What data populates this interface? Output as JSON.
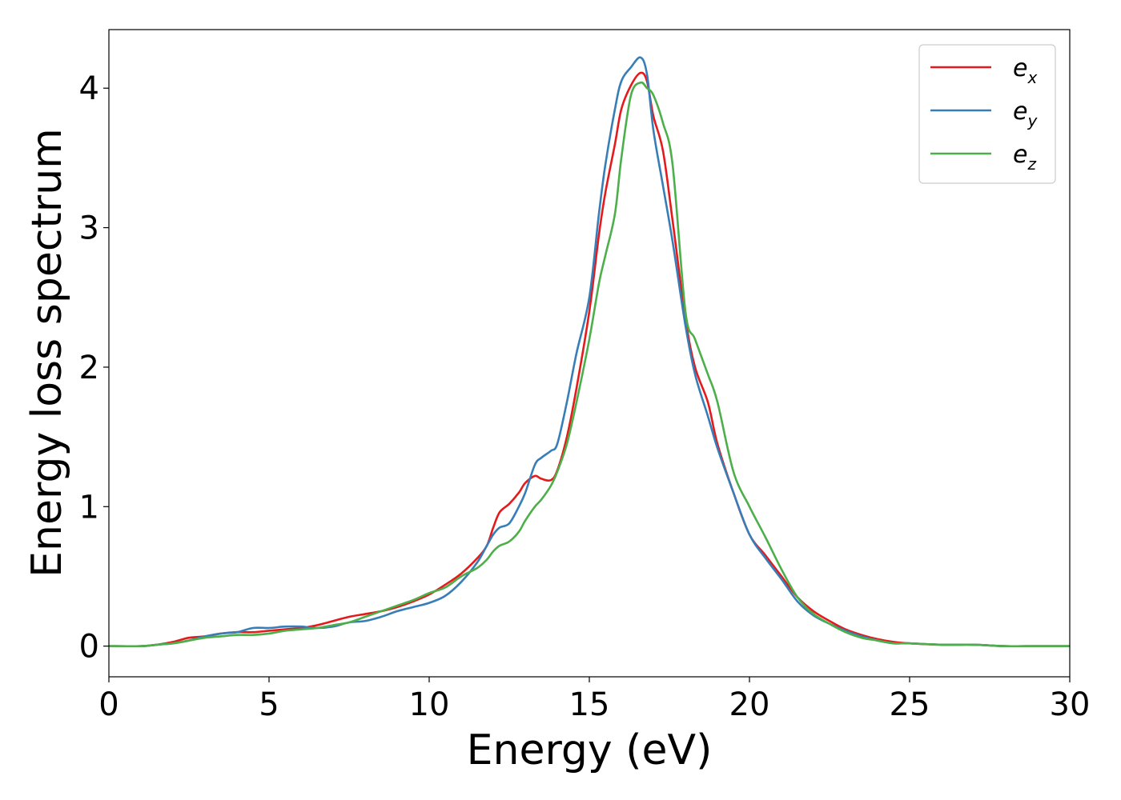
{
  "chart_data": {
    "type": "line",
    "title": "",
    "xlabel": "Energy (eV)",
    "ylabel": "Energy loss spectrum",
    "xlim": [
      0,
      30
    ],
    "ylim": [
      -0.22,
      4.42
    ],
    "xticks": [
      0,
      5,
      10,
      15,
      20,
      25,
      30
    ],
    "yticks": [
      0,
      1,
      2,
      3,
      4
    ],
    "grid": false,
    "legend_position": "top-right",
    "series": [
      {
        "name": "e_x",
        "label_main": "e",
        "label_sub": "x",
        "color": "#e41a1c",
        "x": [
          0,
          1,
          1.5,
          2,
          2.5,
          3,
          3.5,
          4,
          4.5,
          5,
          5.5,
          6,
          6.5,
          7,
          7.5,
          8,
          8.5,
          9,
          9.5,
          10,
          10.5,
          11,
          11.5,
          11.8,
          12,
          12.2,
          12.5,
          12.8,
          13,
          13.3,
          13.5,
          13.8,
          14,
          14.3,
          14.6,
          15,
          15.3,
          15.5,
          15.8,
          16,
          16.3,
          16.6,
          16.8,
          17,
          17.3,
          17.6,
          18,
          18.3,
          18.7,
          19,
          19.5,
          20,
          20.5,
          21,
          21.5,
          22,
          22.5,
          23,
          23.5,
          24,
          24.5,
          25,
          26,
          27,
          28,
          29,
          30
        ],
        "values": [
          0.0,
          0.0,
          0.01,
          0.03,
          0.06,
          0.07,
          0.09,
          0.1,
          0.1,
          0.11,
          0.12,
          0.13,
          0.15,
          0.18,
          0.21,
          0.23,
          0.25,
          0.28,
          0.32,
          0.37,
          0.44,
          0.52,
          0.63,
          0.72,
          0.85,
          0.96,
          1.02,
          1.1,
          1.17,
          1.22,
          1.2,
          1.19,
          1.26,
          1.5,
          1.85,
          2.4,
          2.95,
          3.25,
          3.6,
          3.85,
          4.02,
          4.11,
          4.05,
          3.8,
          3.55,
          3.05,
          2.35,
          2.0,
          1.75,
          1.45,
          1.1,
          0.8,
          0.65,
          0.5,
          0.35,
          0.25,
          0.18,
          0.12,
          0.08,
          0.05,
          0.03,
          0.02,
          0.01,
          0.01,
          0.0,
          0.0,
          0.0
        ]
      },
      {
        "name": "e_y",
        "label_main": "e",
        "label_sub": "y",
        "color": "#377eb8",
        "x": [
          0,
          1,
          1.5,
          2,
          2.5,
          3,
          3.5,
          4,
          4.5,
          5,
          5.5,
          6,
          6.5,
          7,
          7.5,
          8,
          8.5,
          9,
          9.5,
          10,
          10.5,
          11,
          11.5,
          11.8,
          12,
          12.2,
          12.5,
          12.8,
          13,
          13.3,
          13.5,
          13.8,
          14,
          14.3,
          14.6,
          15,
          15.3,
          15.5,
          15.8,
          16,
          16.3,
          16.6,
          16.8,
          17,
          17.3,
          17.6,
          18,
          18.3,
          18.7,
          19,
          19.5,
          20,
          20.5,
          21,
          21.5,
          22,
          22.5,
          23,
          23.5,
          24,
          24.5,
          25,
          26,
          27,
          28,
          29,
          30
        ],
        "values": [
          0.0,
          0.0,
          0.01,
          0.02,
          0.04,
          0.07,
          0.09,
          0.1,
          0.13,
          0.13,
          0.14,
          0.14,
          0.13,
          0.14,
          0.17,
          0.18,
          0.21,
          0.25,
          0.28,
          0.31,
          0.36,
          0.46,
          0.6,
          0.72,
          0.8,
          0.85,
          0.88,
          1.0,
          1.1,
          1.3,
          1.35,
          1.4,
          1.45,
          1.75,
          2.1,
          2.5,
          3.1,
          3.45,
          3.85,
          4.05,
          4.15,
          4.22,
          4.1,
          3.7,
          3.3,
          2.9,
          2.3,
          1.95,
          1.65,
          1.42,
          1.1,
          0.8,
          0.63,
          0.48,
          0.32,
          0.22,
          0.16,
          0.11,
          0.07,
          0.04,
          0.02,
          0.02,
          0.01,
          0.01,
          0.0,
          0.0,
          0.0
        ]
      },
      {
        "name": "e_z",
        "label_main": "e",
        "label_sub": "z",
        "color": "#4daf4a",
        "x": [
          0,
          1,
          1.5,
          2,
          2.5,
          3,
          3.5,
          4,
          4.5,
          5,
          5.5,
          6,
          6.5,
          7,
          7.5,
          8,
          8.5,
          9,
          9.5,
          10,
          10.5,
          11,
          11.5,
          11.8,
          12,
          12.2,
          12.5,
          12.8,
          13,
          13.3,
          13.5,
          13.8,
          14,
          14.3,
          14.6,
          15,
          15.3,
          15.5,
          15.8,
          16,
          16.3,
          16.6,
          16.8,
          17,
          17.3,
          17.6,
          18,
          18.3,
          18.7,
          19,
          19.5,
          20,
          20.5,
          21,
          21.5,
          22,
          22.5,
          23,
          23.5,
          24,
          24.5,
          25,
          26,
          27,
          28,
          29,
          30
        ],
        "values": [
          0.0,
          0.0,
          0.01,
          0.02,
          0.04,
          0.06,
          0.07,
          0.08,
          0.08,
          0.09,
          0.11,
          0.12,
          0.13,
          0.15,
          0.17,
          0.21,
          0.25,
          0.29,
          0.33,
          0.38,
          0.42,
          0.5,
          0.56,
          0.62,
          0.68,
          0.72,
          0.75,
          0.82,
          0.9,
          1.0,
          1.05,
          1.15,
          1.25,
          1.45,
          1.75,
          2.2,
          2.6,
          2.8,
          3.1,
          3.5,
          3.95,
          4.04,
          4.0,
          3.95,
          3.75,
          3.45,
          2.4,
          2.2,
          1.95,
          1.75,
          1.25,
          1.0,
          0.78,
          0.55,
          0.35,
          0.23,
          0.16,
          0.1,
          0.06,
          0.04,
          0.02,
          0.02,
          0.01,
          0.01,
          0.0,
          0.0,
          0.0
        ]
      }
    ]
  }
}
